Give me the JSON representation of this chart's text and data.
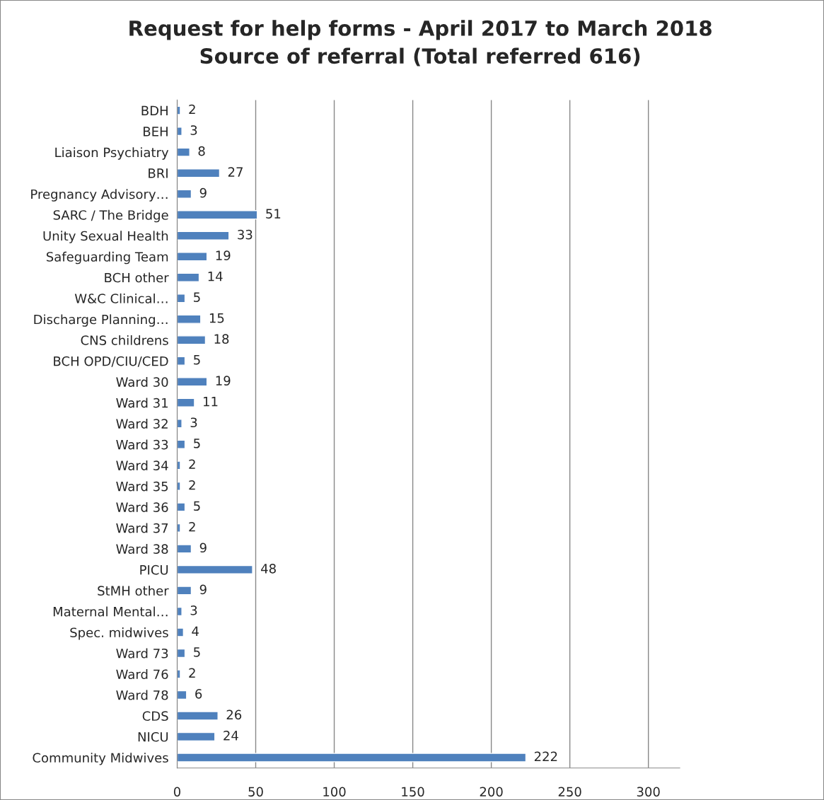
{
  "chart_data": {
    "type": "bar",
    "orientation": "horizontal",
    "title": "Request for help forms - April 2017 to March 2018\nSource of referral (Total referred 616)",
    "categories": [
      "BDH",
      "BEH",
      "Liaison Psychiatry",
      "BRI",
      "Pregnancy Advisory…",
      "SARC / The Bridge",
      "Unity Sexual Health",
      "Safeguarding Team",
      "BCH other",
      "W&C Clinical…",
      "Discharge Planning…",
      "CNS childrens",
      "BCH OPD/CIU/CED",
      "Ward 30",
      "Ward 31",
      "Ward 32",
      "Ward 33",
      "Ward 34",
      "Ward 35",
      "Ward 36",
      "Ward 37",
      "Ward 38",
      "PICU",
      "StMH other",
      "Maternal Mental…",
      "Spec. midwives",
      "Ward 73",
      "Ward 76",
      "Ward 78",
      "CDS",
      "NICU",
      "Community Midwives"
    ],
    "values": [
      2,
      3,
      8,
      27,
      9,
      51,
      33,
      19,
      14,
      5,
      15,
      18,
      5,
      19,
      11,
      3,
      5,
      2,
      2,
      5,
      2,
      9,
      48,
      9,
      3,
      4,
      5,
      2,
      6,
      26,
      24,
      222
    ],
    "color": "#4f81bd",
    "xlim": [
      0,
      320
    ],
    "xticks": [
      0,
      50,
      100,
      150,
      200,
      250,
      300
    ],
    "grid": "x",
    "data_labels": true,
    "legend": false
  }
}
